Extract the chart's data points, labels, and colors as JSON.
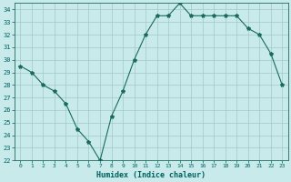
{
  "x": [
    0,
    1,
    2,
    3,
    4,
    5,
    6,
    7,
    8,
    9,
    10,
    11,
    12,
    13,
    14,
    15,
    16,
    17,
    18,
    19,
    20,
    21,
    22,
    23
  ],
  "y": [
    29.5,
    29.0,
    28.0,
    27.5,
    26.5,
    24.5,
    23.5,
    22.0,
    25.5,
    27.5,
    30.0,
    32.0,
    33.5,
    33.5,
    34.5,
    33.5,
    33.5,
    33.5,
    33.5,
    33.5,
    32.5,
    32.0,
    30.5,
    28.0
  ],
  "xlabel": "Humidex (Indice chaleur)",
  "ylim": [
    22,
    34.5
  ],
  "xlim": [
    -0.5,
    23.5
  ],
  "yticks": [
    22,
    23,
    24,
    25,
    26,
    27,
    28,
    29,
    30,
    31,
    32,
    33,
    34
  ],
  "xticks": [
    0,
    1,
    2,
    3,
    4,
    5,
    6,
    7,
    8,
    9,
    10,
    11,
    12,
    13,
    14,
    15,
    16,
    17,
    18,
    19,
    20,
    21,
    22,
    23
  ],
  "line_color": "#1a6b5a",
  "marker": "*",
  "bg_color": "#c8eaea",
  "grid_color": "#a0c8c8",
  "axis_label_color": "#006060",
  "tick_label_color": "#006060",
  "title": ""
}
